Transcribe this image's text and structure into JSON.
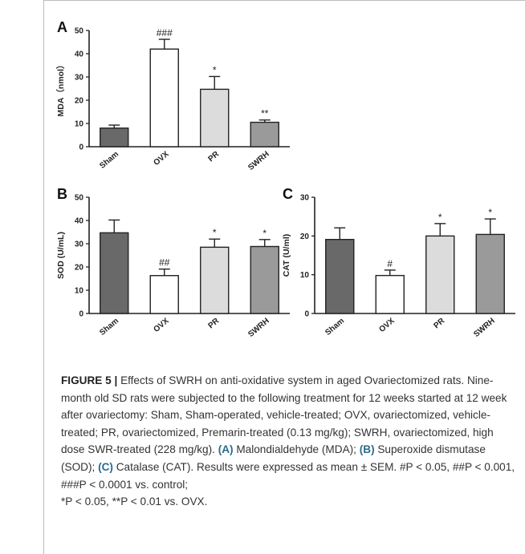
{
  "chart_data": [
    {
      "type": "bar",
      "panel": "A",
      "categories": [
        "Sham",
        "OVX",
        "PR",
        "SWRH"
      ],
      "values": [
        8,
        42,
        24.7,
        10.5
      ],
      "errors": [
        1.3,
        4.2,
        5.5,
        1.0
      ],
      "annotations": [
        "",
        "###",
        "*",
        "**"
      ],
      "ylabel": "MDA（nmol）",
      "ylim": [
        0,
        50
      ],
      "yticks": [
        0,
        10,
        20,
        30,
        40,
        50
      ],
      "colors": [
        "#696969",
        "#ffffff",
        "#dcdcdc",
        "#9a9a9a"
      ]
    },
    {
      "type": "bar",
      "panel": "B",
      "categories": [
        "Sham",
        "OVX",
        "PR",
        "SWRH"
      ],
      "values": [
        34.7,
        16.3,
        28.5,
        28.8
      ],
      "errors": [
        5.5,
        2.8,
        3.5,
        3.0
      ],
      "annotations": [
        "",
        "##",
        "*",
        "*"
      ],
      "ylabel": "SOD (U/mL)",
      "ylim": [
        0,
        50
      ],
      "yticks": [
        0,
        10,
        20,
        30,
        40,
        50
      ],
      "colors": [
        "#696969",
        "#ffffff",
        "#dcdcdc",
        "#9a9a9a"
      ]
    },
    {
      "type": "bar",
      "panel": "C",
      "categories": [
        "Sham",
        "OVX",
        "PR",
        "SWRH"
      ],
      "values": [
        19.1,
        9.8,
        20.0,
        20.4
      ],
      "errors": [
        3.0,
        1.4,
        3.2,
        4.0
      ],
      "annotations": [
        "",
        "#",
        "*",
        "*"
      ],
      "ylabel": "CAT (U/ml)",
      "ylim": [
        0,
        30
      ],
      "yticks": [
        0,
        10,
        20,
        30
      ],
      "colors": [
        "#696969",
        "#ffffff",
        "#dcdcdc",
        "#9a9a9a"
      ]
    }
  ],
  "caption": {
    "figure_label": "FIGURE 5 | ",
    "intro": "Effects of SWRH on anti-oxidative system in aged Ovariectomized rats. Nine-month old SD rats were subjected to the following treatment for 12 weeks started at 12 week after ovariectomy: Sham, Sham-operated, vehicle-treated; OVX, ovariectomized, vehicle-treated; PR, ovariectomized, Premarin-treated (0.13 mg/kg); SWRH, ovariectomized, high dose SWR-treated (228 mg/kg). ",
    "label_a": "(A)",
    "text_a": " Malondialdehyde (MDA); ",
    "label_b": "(B)",
    "text_b": " Superoxide dismutase (SOD); ",
    "label_c": "(C)",
    "text_c": " Catalase (CAT). Results were expressed as mean ± SEM. ",
    "stats_1": "#P < 0.05, ##P < 0.001, ###P < 0.0001 vs. control;",
    "stats_2": "*P < 0.05, **P < 0.01 vs. OVX."
  }
}
